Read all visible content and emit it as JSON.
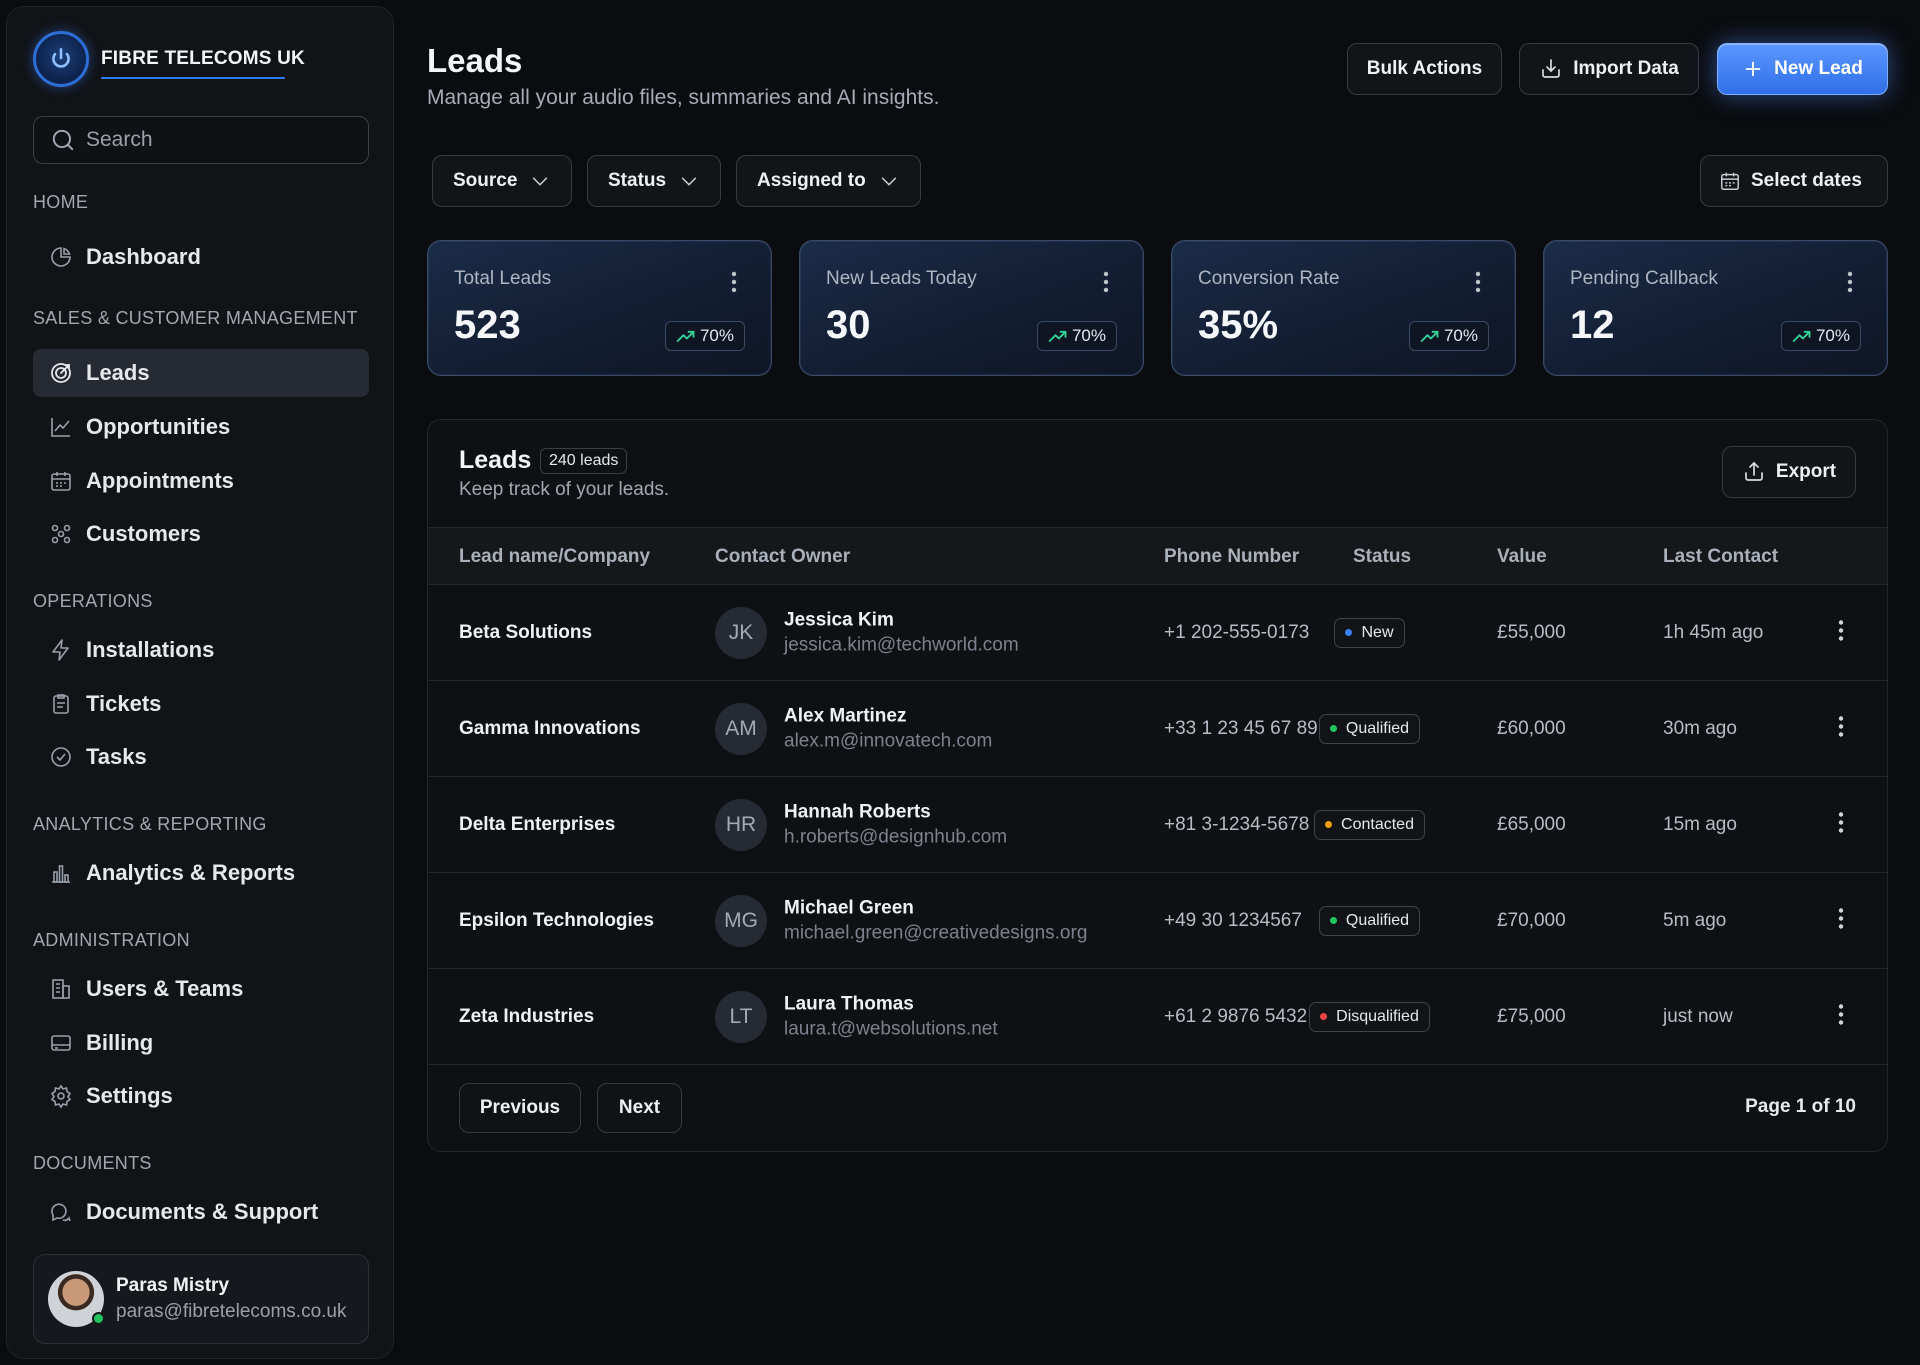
{
  "brand": {
    "name": "FIBRE TELECOMS UK"
  },
  "search": {
    "placeholder": "Search"
  },
  "sidebar": {
    "sections": [
      {
        "title": "HOME",
        "items": [
          {
            "label": "Dashboard",
            "icon": "pie-chart-icon"
          }
        ]
      },
      {
        "title": "SALES & CUSTOMER MANAGEMENT",
        "items": [
          {
            "label": "Leads",
            "icon": "target-icon",
            "active": true
          },
          {
            "label": "Opportunities",
            "icon": "line-chart-icon"
          },
          {
            "label": "Appointments",
            "icon": "calendar-icon"
          },
          {
            "label": "Customers",
            "icon": "users-icon"
          }
        ]
      },
      {
        "title": "OPERATIONS",
        "items": [
          {
            "label": "Installations",
            "icon": "lightning-icon"
          },
          {
            "label": "Tickets",
            "icon": "clipboard-icon"
          },
          {
            "label": "Tasks",
            "icon": "check-circle-icon"
          }
        ]
      },
      {
        "title": "ANALYTICS & REPORTING",
        "items": [
          {
            "label": "Analytics & Reports",
            "icon": "bar-chart-icon"
          }
        ]
      },
      {
        "title": "ADMINISTRATION",
        "items": [
          {
            "label": "Users & Teams",
            "icon": "building-icon"
          },
          {
            "label": "Billing",
            "icon": "credit-card-icon"
          },
          {
            "label": "Settings",
            "icon": "gear-icon"
          }
        ]
      },
      {
        "title": "DOCUMENTS",
        "items": [
          {
            "label": "Documents & Support",
            "icon": "chat-bubbles-icon"
          }
        ]
      }
    ]
  },
  "user": {
    "name": "Paras Mistry",
    "email": "paras@fibretelecoms.co.uk",
    "status": "online"
  },
  "header": {
    "title": "Leads",
    "subtitle": "Manage all your audio files, summaries and AI insights.",
    "bulk_actions": "Bulk Actions",
    "import_data": "Import Data",
    "new_lead": "New Lead"
  },
  "filters": {
    "source": "Source",
    "status": "Status",
    "assigned": "Assigned to",
    "dates": "Select dates"
  },
  "stats": [
    {
      "label": "Total Leads",
      "value": "523",
      "change": "70%"
    },
    {
      "label": "New Leads Today",
      "value": "30",
      "change": "70%"
    },
    {
      "label": "Conversion Rate",
      "value": "35%",
      "change": "70%"
    },
    {
      "label": "Pending Callback",
      "value": "12",
      "change": "70%"
    }
  ],
  "table": {
    "title": "Leads",
    "count": "240 leads",
    "subtitle": "Keep track of your leads.",
    "export": "Export",
    "columns": [
      "Lead name/Company",
      "Contact Owner",
      "Phone Number",
      "Status",
      "Value",
      "Last Contact"
    ],
    "rows": [
      {
        "company": "Beta Solutions",
        "initials": "JK",
        "owner": "Jessica Kim",
        "email": "jessica.kim@techworld.com",
        "phone": "+1 202-555-0173",
        "status": "New",
        "status_color": "#3b82f6",
        "value": "£55,000",
        "last": "1h 45m ago"
      },
      {
        "company": "Gamma Innovations",
        "initials": "AM",
        "owner": "Alex Martinez",
        "email": "alex.m@innovatech.com",
        "phone": "+33 1 23 45 67 89",
        "status": "Qualified",
        "status_color": "#22c55e",
        "value": "£60,000",
        "last": "30m ago"
      },
      {
        "company": "Delta Enterprises",
        "initials": "HR",
        "owner": "Hannah Roberts",
        "email": "h.roberts@designhub.com",
        "phone": "+81 3-1234-5678",
        "status": "Contacted",
        "status_color": "#f59e0b",
        "value": "£65,000",
        "last": "15m ago"
      },
      {
        "company": "Epsilon Technologies",
        "initials": "MG",
        "owner": "Michael Green",
        "email": "michael.green@creativedesigns.org",
        "phone": "+49 30 1234567",
        "status": "Qualified",
        "status_color": "#22c55e",
        "value": "£70,000",
        "last": "5m ago"
      },
      {
        "company": "Zeta Industries",
        "initials": "LT",
        "owner": "Laura Thomas",
        "email": "laura.t@websolutions.net",
        "phone": "+61 2 9876 5432",
        "status": "Disqualified",
        "status_color": "#ef4444",
        "value": "£75,000",
        "last": "just now"
      }
    ]
  },
  "pagination": {
    "previous": "Previous",
    "next": "Next",
    "info": "Page 1 of 10"
  }
}
